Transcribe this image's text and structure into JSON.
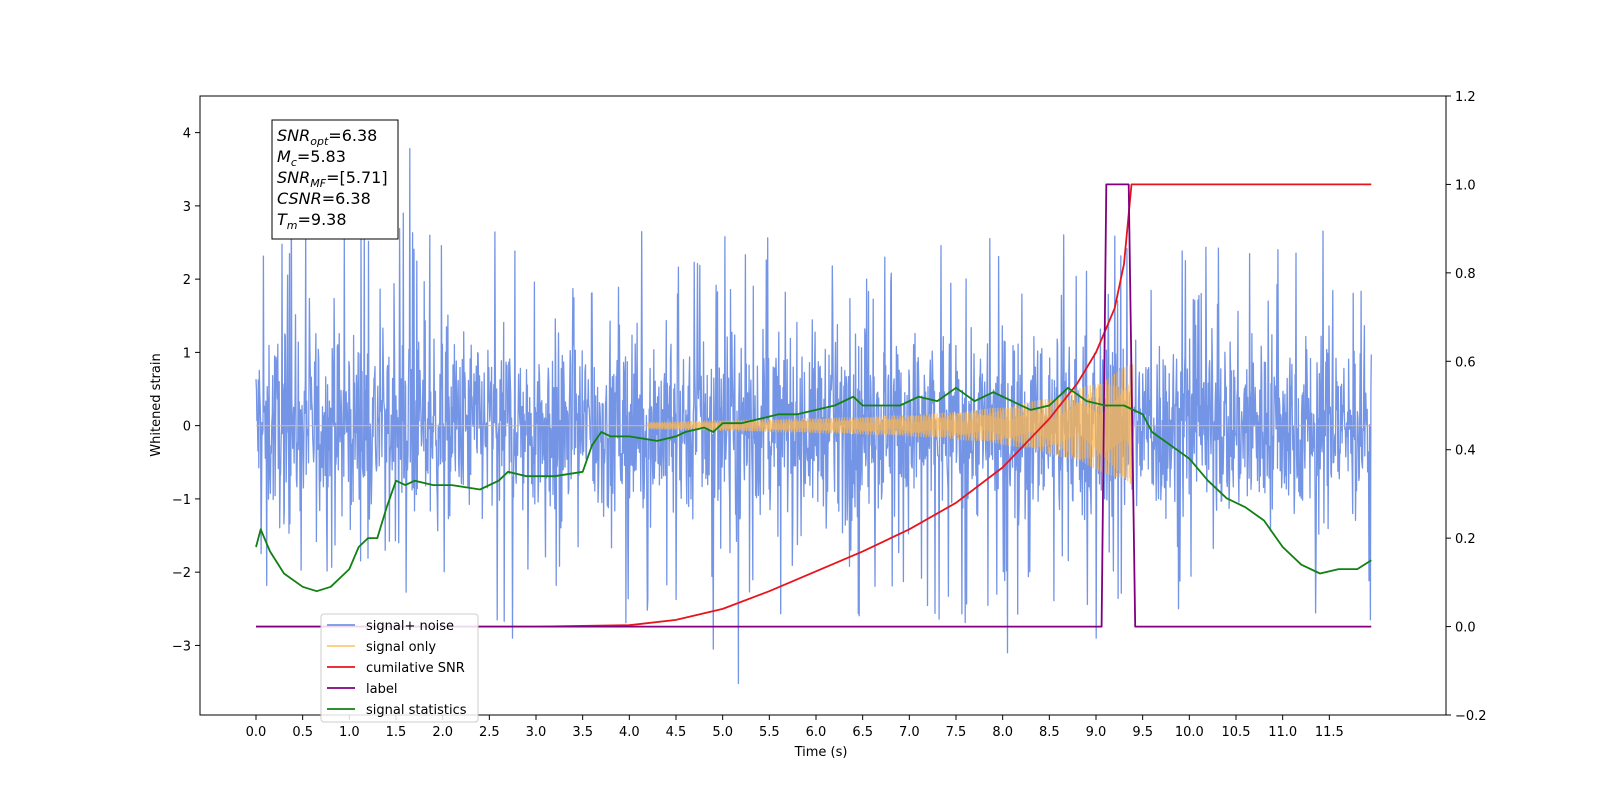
{
  "chart_data": {
    "type": "line",
    "title": "",
    "xlabel": "Time (s)",
    "ylabel": "Whitened strain",
    "y2label": "",
    "xlim": [
      -0.6,
      12.75
    ],
    "ylim": [
      -3.95,
      4.5
    ],
    "y2lim": [
      -0.2,
      1.2
    ],
    "x_ticks": [
      "0.0",
      "0.5",
      "1.0",
      "1.5",
      "2.0",
      "2.5",
      "3.0",
      "3.5",
      "4.0",
      "4.5",
      "5.0",
      "5.5",
      "6.0",
      "6.5",
      "7.0",
      "7.5",
      "8.0",
      "8.5",
      "9.0",
      "9.5",
      "10.0",
      "10.5",
      "11.0",
      "11.5"
    ],
    "y_ticks": [
      "−3",
      "−2",
      "−1",
      "0",
      "1",
      "2",
      "3",
      "4"
    ],
    "y2_ticks": [
      "−0.2",
      "0.0",
      "0.2",
      "0.4",
      "0.6",
      "0.8",
      "1.0",
      "1.2"
    ],
    "grid": false,
    "legend_position": "lower-left",
    "annotation": [
      {
        "base": "SNR",
        "sub": "opt",
        "text": "=6.38"
      },
      {
        "base": "M",
        "sub": "c",
        "text": "=5.83"
      },
      {
        "base": "SNR",
        "sub": "MF",
        "text": "=[5.71]"
      },
      {
        "base": "CSNR",
        "sub": "",
        "text": "=6.38"
      },
      {
        "base": "T",
        "sub": "m",
        "text": "=9.38"
      }
    ],
    "series": [
      {
        "name": "signal+ noise",
        "color": "#7494e6",
        "axis": "left",
        "x_range": [
          0.0,
          11.95
        ],
        "noise_envelope_upper": 1.3,
        "noise_envelope_lower": -1.6,
        "spikes": [
          [
            1.65,
            3.78
          ],
          [
            0.38,
            3.3
          ],
          [
            1.58,
            2.9
          ],
          [
            5.17,
            -3.52
          ],
          [
            4.9,
            -3.05
          ],
          [
            8.05,
            -3.1
          ],
          [
            9.0,
            -2.9
          ],
          [
            2.75,
            -2.9
          ]
        ]
      },
      {
        "name": "signal only",
        "color": "#ffb74d",
        "axis": "left",
        "x_range": [
          0.0,
          11.95
        ],
        "chirp_start": 4.2,
        "chirp_peak_x": 9.38,
        "chirp_peak_amplitude": 0.65
      },
      {
        "name": "cumilative SNR",
        "color": "#e8141c",
        "axis": "right",
        "points": [
          [
            0.0,
            0.0
          ],
          [
            3.0,
            0.0
          ],
          [
            4.0,
            0.003
          ],
          [
            4.5,
            0.015
          ],
          [
            5.0,
            0.04
          ],
          [
            5.5,
            0.08
          ],
          [
            6.0,
            0.125
          ],
          [
            6.5,
            0.17
          ],
          [
            7.0,
            0.22
          ],
          [
            7.5,
            0.28
          ],
          [
            8.0,
            0.36
          ],
          [
            8.5,
            0.47
          ],
          [
            8.8,
            0.55
          ],
          [
            9.0,
            0.62
          ],
          [
            9.2,
            0.72
          ],
          [
            9.3,
            0.82
          ],
          [
            9.38,
            1.0
          ],
          [
            11.95,
            1.0
          ]
        ]
      },
      {
        "name": "label",
        "color": "#800080",
        "axis": "right",
        "points": [
          [
            0.0,
            0.0
          ],
          [
            9.06,
            0.0
          ],
          [
            9.11,
            1.0
          ],
          [
            9.35,
            1.0
          ],
          [
            9.42,
            0.0
          ],
          [
            11.95,
            0.0
          ]
        ]
      },
      {
        "name": "signal statistics",
        "color": "#128012",
        "axis": "right",
        "points": [
          [
            0.0,
            0.18
          ],
          [
            0.05,
            0.22
          ],
          [
            0.15,
            0.17
          ],
          [
            0.3,
            0.12
          ],
          [
            0.5,
            0.09
          ],
          [
            0.65,
            0.08
          ],
          [
            0.8,
            0.09
          ],
          [
            1.0,
            0.13
          ],
          [
            1.1,
            0.18
          ],
          [
            1.2,
            0.2
          ],
          [
            1.3,
            0.2
          ],
          [
            1.4,
            0.27
          ],
          [
            1.5,
            0.33
          ],
          [
            1.6,
            0.32
          ],
          [
            1.7,
            0.33
          ],
          [
            1.9,
            0.32
          ],
          [
            2.1,
            0.32
          ],
          [
            2.4,
            0.31
          ],
          [
            2.6,
            0.33
          ],
          [
            2.7,
            0.35
          ],
          [
            2.9,
            0.34
          ],
          [
            3.2,
            0.34
          ],
          [
            3.5,
            0.35
          ],
          [
            3.6,
            0.41
          ],
          [
            3.7,
            0.44
          ],
          [
            3.8,
            0.43
          ],
          [
            4.0,
            0.43
          ],
          [
            4.3,
            0.42
          ],
          [
            4.5,
            0.43
          ],
          [
            4.6,
            0.44
          ],
          [
            4.8,
            0.45
          ],
          [
            4.9,
            0.44
          ],
          [
            5.0,
            0.46
          ],
          [
            5.2,
            0.46
          ],
          [
            5.4,
            0.47
          ],
          [
            5.6,
            0.48
          ],
          [
            5.8,
            0.48
          ],
          [
            6.0,
            0.49
          ],
          [
            6.2,
            0.5
          ],
          [
            6.4,
            0.52
          ],
          [
            6.5,
            0.5
          ],
          [
            6.7,
            0.5
          ],
          [
            6.9,
            0.5
          ],
          [
            7.1,
            0.52
          ],
          [
            7.3,
            0.51
          ],
          [
            7.5,
            0.54
          ],
          [
            7.7,
            0.51
          ],
          [
            7.9,
            0.53
          ],
          [
            8.1,
            0.51
          ],
          [
            8.3,
            0.49
          ],
          [
            8.5,
            0.5
          ],
          [
            8.7,
            0.54
          ],
          [
            8.9,
            0.51
          ],
          [
            9.1,
            0.5
          ],
          [
            9.3,
            0.5
          ],
          [
            9.5,
            0.48
          ],
          [
            9.6,
            0.44
          ],
          [
            9.8,
            0.41
          ],
          [
            10.0,
            0.38
          ],
          [
            10.2,
            0.33
          ],
          [
            10.4,
            0.29
          ],
          [
            10.6,
            0.27
          ],
          [
            10.8,
            0.24
          ],
          [
            11.0,
            0.18
          ],
          [
            11.2,
            0.14
          ],
          [
            11.4,
            0.12
          ],
          [
            11.6,
            0.13
          ],
          [
            11.8,
            0.13
          ],
          [
            11.95,
            0.15
          ]
        ]
      }
    ]
  }
}
